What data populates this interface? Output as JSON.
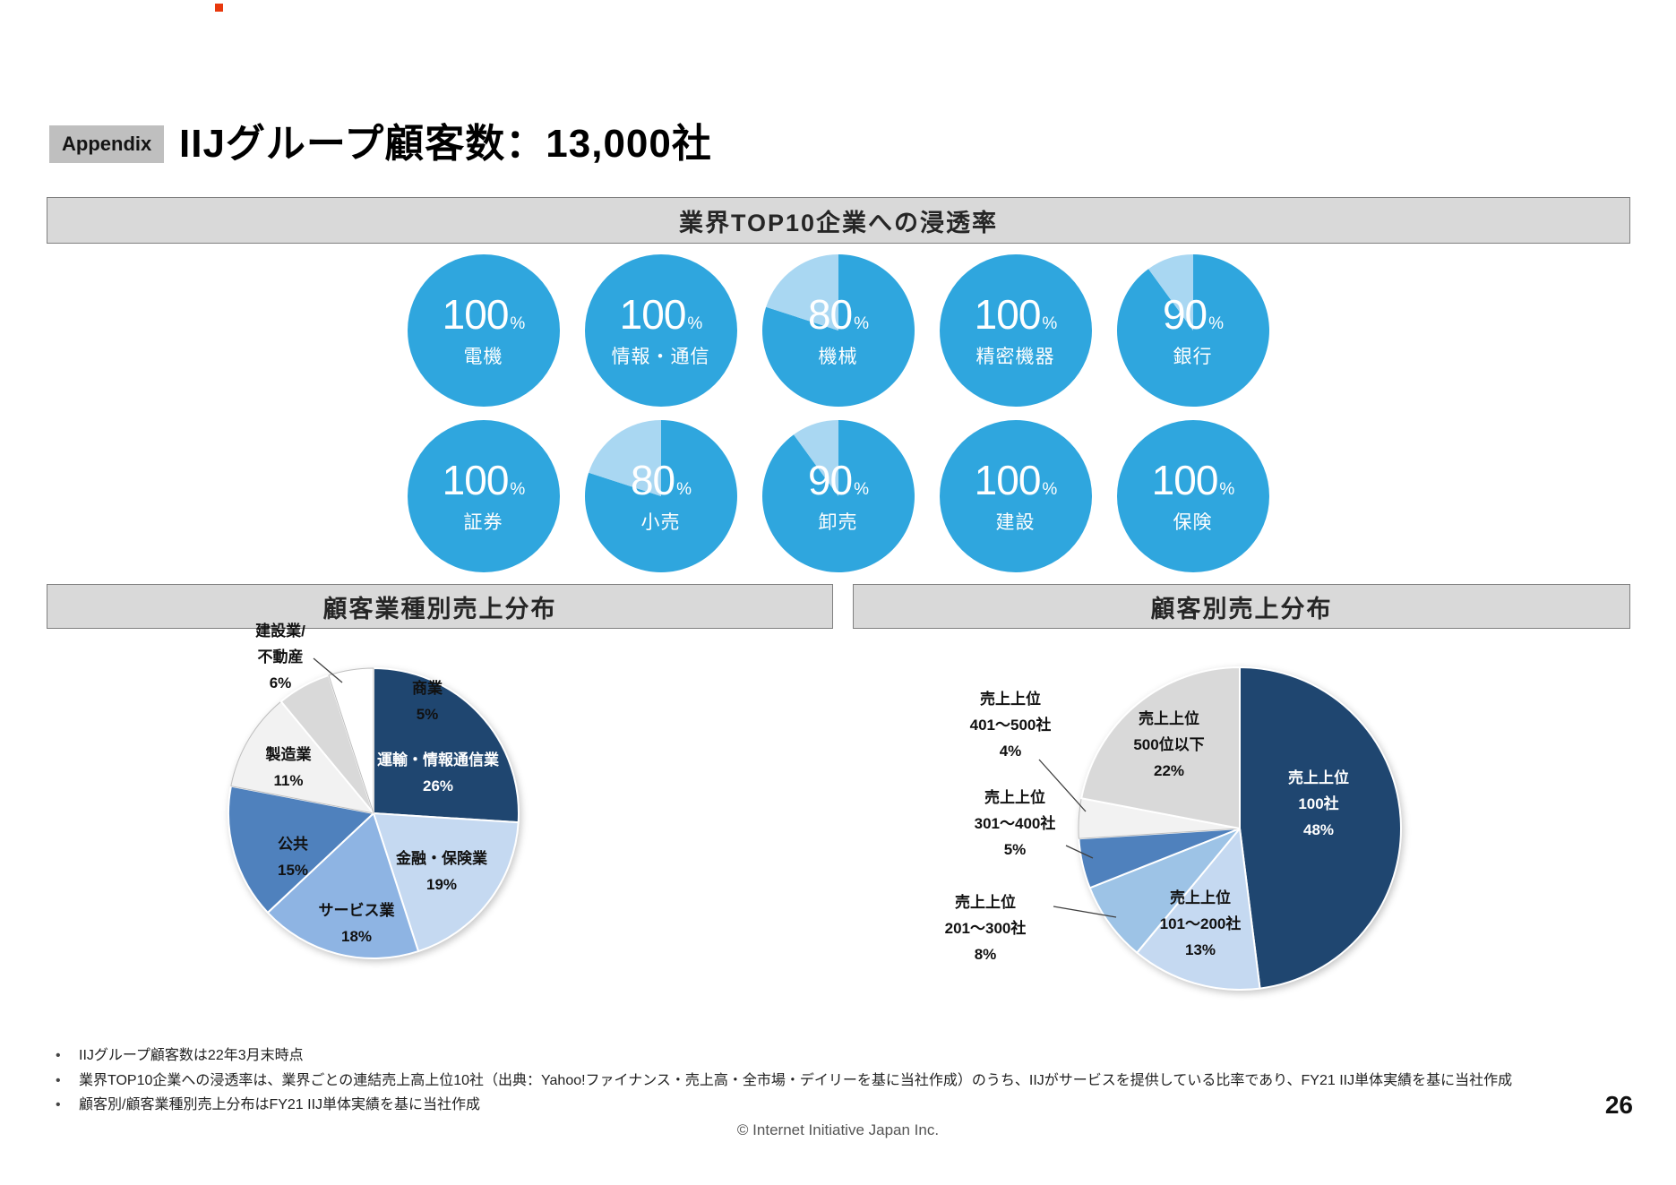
{
  "page": {
    "appendix_label": "Appendix",
    "title": "IIJグループ顧客数：13,000社",
    "bullet": "•",
    "footnotes": [
      "IIJグループ顧客数は22年3月末時点",
      "業界TOP10企業への浸透率は、業界ごとの連結売上高上位10社（出典：Yahoo!ファイナンス・売上高・全市場・デイリーを基に当社作成）のうち、IIJがサービスを提供している比率であり、FY21 IIJ単体実績を基に当社作成",
      "顧客別/顧客業種別売上分布はFY21 IIJ単体実績を基に当社作成"
    ],
    "footer": "© Internet Initiative Japan Inc.",
    "page_number": "26"
  },
  "sections": {
    "penetration": {
      "header": "業界TOP10企業への浸透率"
    },
    "industry": {
      "header": "顧客業種別売上分布"
    },
    "customer": {
      "header": "顧客別売上分布"
    }
  },
  "colors": {
    "gauge_fill": "#2FA6DE",
    "gauge_rest": "#A9D7F2",
    "header_bg": "#D9D9D9",
    "navy": "#1F4670"
  },
  "chart_data": [
    {
      "type": "pie",
      "title": "業界TOP10企業への浸透率",
      "unit": "%",
      "items": [
        {
          "label": "電機",
          "value": 100
        },
        {
          "label": "情報・通信",
          "value": 100
        },
        {
          "label": "機械",
          "value": 80
        },
        {
          "label": "精密機器",
          "value": 100
        },
        {
          "label": "銀行",
          "value": 90
        },
        {
          "label": "証券",
          "value": 100
        },
        {
          "label": "小売",
          "value": 80
        },
        {
          "label": "卸売",
          "value": 90
        },
        {
          "label": "建設",
          "value": 100
        },
        {
          "label": "保険",
          "value": 100
        }
      ]
    },
    {
      "type": "pie",
      "title": "顧客業種別売上分布",
      "slices": [
        {
          "name": "運輸・情報通信業",
          "value": 26,
          "color": "#1F4670",
          "lines": [
            "運輸・情報通信業",
            "26%"
          ]
        },
        {
          "name": "金融・保険業",
          "value": 19,
          "color": "#C5D9F1",
          "lines": [
            "金融・保険業",
            "19%"
          ]
        },
        {
          "name": "サービス業",
          "value": 18,
          "color": "#8EB4E3",
          "lines": [
            "サービス業",
            "18%"
          ]
        },
        {
          "name": "公共",
          "value": 15,
          "color": "#4F81BD",
          "lines": [
            "公共",
            "15%"
          ]
        },
        {
          "name": "製造業",
          "value": 11,
          "color": "#F2F2F2",
          "lines": [
            "製造業",
            "11%"
          ]
        },
        {
          "name": "建設業/不動産",
          "value": 6,
          "color": "#D9D9D9",
          "lines": [
            "建設業/",
            "不動産",
            "6%"
          ]
        },
        {
          "name": "商業",
          "value": 5,
          "color": "#FFFFFF",
          "lines": [
            "商業",
            "5%"
          ]
        }
      ]
    },
    {
      "type": "pie",
      "title": "顧客別売上分布",
      "slices": [
        {
          "name": "売上上位100社",
          "value": 48,
          "color": "#1F4670",
          "lines": [
            "売上上位",
            "100社",
            "48%"
          ]
        },
        {
          "name": "売上上位101〜200社",
          "value": 13,
          "color": "#C5D9F1",
          "lines": [
            "売上上位",
            "101〜200社",
            "13%"
          ]
        },
        {
          "name": "売上上位201〜300社",
          "value": 8,
          "color": "#9DC3E6",
          "lines": [
            "売上上位",
            "201〜300社",
            "8%"
          ]
        },
        {
          "name": "売上上位301〜400社",
          "value": 5,
          "color": "#4F81BD",
          "lines": [
            "売上上位",
            "301〜400社",
            "5%"
          ]
        },
        {
          "name": "売上上位401〜500社",
          "value": 4,
          "color": "#F2F2F2",
          "lines": [
            "売上上位",
            "401〜500社",
            "4%"
          ]
        },
        {
          "name": "売上上位500位以下",
          "value": 22,
          "color": "#D9D9D9",
          "lines": [
            "売上上位",
            "500位以下",
            "22%"
          ]
        }
      ]
    }
  ]
}
